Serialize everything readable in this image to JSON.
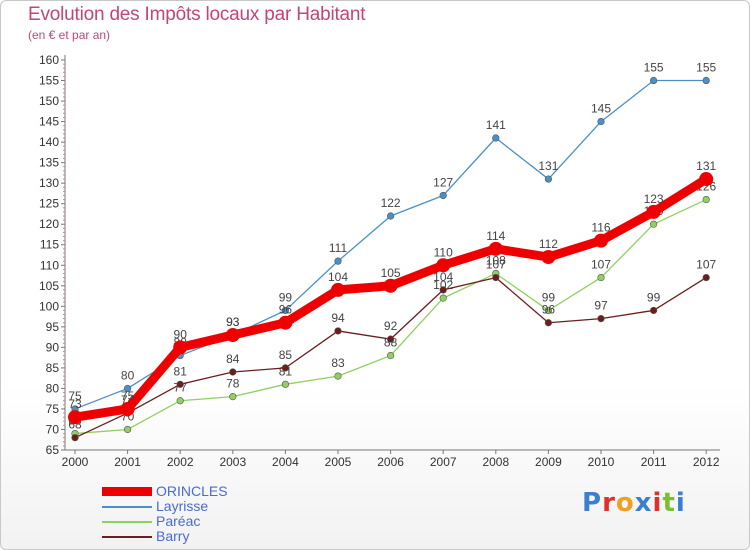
{
  "title": "Evolution des Impôts locaux par Habitant",
  "subtitle": "(en € et par an)",
  "logo": {
    "letters": [
      "P",
      "r",
      "o",
      "x",
      "i",
      "t",
      "i"
    ],
    "colors": [
      "#3a7fd0",
      "#e0302a",
      "#f0a020",
      "#3a7fd0",
      "#e0302a",
      "#7bbf30",
      "#3a7fd0"
    ]
  },
  "chart_data": {
    "type": "line",
    "x": [
      "2000",
      "2001",
      "2002",
      "2003",
      "2004",
      "2005",
      "2006",
      "2007",
      "2008",
      "2009",
      "2010",
      "2011",
      "2012"
    ],
    "ylim": [
      65,
      160
    ],
    "ytick_step": 5,
    "grid": false,
    "legend_position": "bottom-left",
    "series": [
      {
        "name": "ORINCLES",
        "values": [
          73,
          75,
          90,
          93,
          96,
          104,
          105,
          110,
          114,
          112,
          116,
          123,
          131
        ],
        "color": "#ee0000",
        "emphasis": true
      },
      {
        "name": "Layrisse",
        "values": [
          75,
          80,
          88,
          93,
          99,
          111,
          122,
          127,
          141,
          131,
          145,
          155,
          155
        ],
        "color": "#4a90c8"
      },
      {
        "name": "Paréac",
        "values": [
          69,
          70,
          77,
          78,
          81,
          83,
          88,
          102,
          108,
          99,
          107,
          120,
          126
        ],
        "color": "#8fd060"
      },
      {
        "name": "Barry",
        "values": [
          68,
          74,
          81,
          84,
          85,
          94,
          92,
          104,
          107,
          96,
          97,
          99,
          107
        ],
        "color": "#6b1e1e"
      }
    ]
  }
}
